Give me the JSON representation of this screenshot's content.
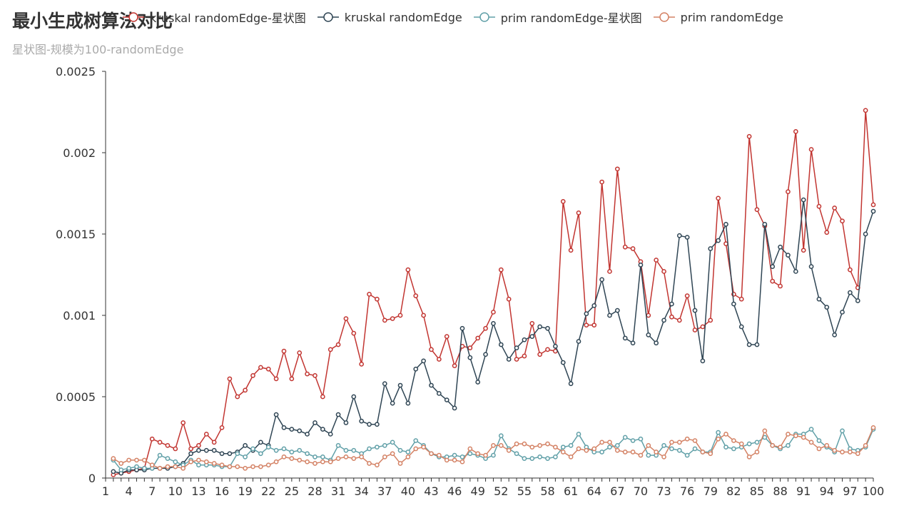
{
  "chart_data": {
    "type": "line",
    "title": "最小生成树算法对比",
    "subtitle": "星状图-规模为100-randomEdge",
    "xlabel": "",
    "ylabel": "",
    "ylim": [
      0,
      0.0025
    ],
    "yticks": [
      "0",
      "0.0005",
      "0.001",
      "0.0015",
      "0.002",
      "0.0025"
    ],
    "x_start": 1,
    "x_end": 100,
    "xticks": [
      1,
      4,
      7,
      10,
      13,
      16,
      19,
      22,
      25,
      28,
      31,
      34,
      37,
      40,
      43,
      46,
      49,
      52,
      55,
      58,
      61,
      64,
      67,
      70,
      73,
      76,
      79,
      82,
      85,
      88,
      91,
      94,
      97,
      100
    ],
    "legend_position": "top",
    "series": [
      {
        "name": "kruskal randomEdge-星状图",
        "color": "#c23531",
        "values": [
          null,
          2e-05,
          3e-05,
          4e-05,
          5e-05,
          6e-05,
          0.00024,
          0.00022,
          0.0002,
          0.00018,
          0.00034,
          0.00018,
          0.0002,
          0.00027,
          0.00022,
          0.00031,
          0.00061,
          0.0005,
          0.00054,
          0.00063,
          0.00068,
          0.00067,
          0.00061,
          0.00078,
          0.00061,
          0.00077,
          0.00064,
          0.00063,
          0.0005,
          0.00079,
          0.00082,
          0.00098,
          0.00089,
          0.0007,
          0.00113,
          0.0011,
          0.00097,
          0.00098,
          0.001,
          0.00128,
          0.00112,
          0.001,
          0.00079,
          0.00073,
          0.00087,
          0.00069,
          0.00081,
          0.0008,
          0.00086,
          0.00092,
          0.00102,
          0.00128,
          0.0011,
          0.00073,
          0.00075,
          0.00095,
          0.00076,
          0.00079,
          0.00078,
          0.0017,
          0.0014,
          0.00163,
          0.00094,
          0.00094,
          0.00182,
          0.00127,
          0.0019,
          0.00142,
          0.00141,
          0.00133,
          0.001,
          0.00134,
          0.00127,
          0.00099,
          0.00097,
          0.00112,
          0.00091,
          0.00093,
          0.00097,
          0.00172,
          0.00144,
          0.00113,
          0.0011,
          0.0021,
          0.00165,
          0.00155,
          0.00121,
          0.00118,
          0.00176,
          0.00213,
          0.0014,
          0.00202,
          0.00167,
          0.00151,
          0.00166,
          0.00158,
          0.00128,
          0.00117,
          0.00226,
          0.00168
        ]
      },
      {
        "name": "kruskal randomEdge",
        "color": "#2f4554",
        "values": [
          null,
          4e-05,
          3e-05,
          5e-05,
          5e-05,
          5e-05,
          6e-05,
          6e-05,
          6e-05,
          7e-05,
          9e-05,
          0.00015,
          0.00017,
          0.00017,
          0.00017,
          0.00015,
          0.00015,
          0.00016,
          0.0002,
          0.00017,
          0.00022,
          0.0002,
          0.00039,
          0.00031,
          0.0003,
          0.00029,
          0.00027,
          0.00034,
          0.0003,
          0.00027,
          0.00039,
          0.00034,
          0.0005,
          0.00035,
          0.00033,
          0.00033,
          0.00058,
          0.00046,
          0.00057,
          0.00046,
          0.00067,
          0.00072,
          0.00057,
          0.00052,
          0.00048,
          0.00043,
          0.00092,
          0.00074,
          0.00059,
          0.00076,
          0.00095,
          0.00082,
          0.00073,
          0.0008,
          0.00085,
          0.00087,
          0.00093,
          0.00092,
          0.00081,
          0.00071,
          0.00058,
          0.00084,
          0.00101,
          0.00106,
          0.00122,
          0.001,
          0.00103,
          0.00086,
          0.00083,
          0.00131,
          0.00088,
          0.00083,
          0.00097,
          0.00107,
          0.00149,
          0.00148,
          0.00103,
          0.00072,
          0.00141,
          0.00146,
          0.00156,
          0.00107,
          0.00093,
          0.00082,
          0.00082,
          0.00156,
          0.0013,
          0.00142,
          0.00137,
          0.00127,
          0.00171,
          0.0013,
          0.0011,
          0.00105,
          0.00088,
          0.00102,
          0.00114,
          0.00109,
          0.0015,
          0.00164
        ]
      },
      {
        "name": "prim randomEdge-星状图",
        "color": "#61a0a8",
        "values": [
          null,
          0.00011,
          5e-05,
          6e-05,
          7e-05,
          6e-05,
          6e-05,
          0.00014,
          0.00012,
          0.0001,
          8e-05,
          0.00011,
          8e-05,
          8e-05,
          8e-05,
          7e-05,
          7e-05,
          0.00015,
          0.00013,
          0.00018,
          0.00015,
          0.00019,
          0.00017,
          0.00018,
          0.00016,
          0.00017,
          0.00015,
          0.00013,
          0.00013,
          0.00011,
          0.0002,
          0.00017,
          0.00017,
          0.00015,
          0.00018,
          0.00019,
          0.0002,
          0.00022,
          0.00017,
          0.00016,
          0.00023,
          0.0002,
          0.00015,
          0.00013,
          0.00013,
          0.00014,
          0.00013,
          0.00015,
          0.00014,
          0.00012,
          0.00014,
          0.00026,
          0.00018,
          0.00015,
          0.00012,
          0.00012,
          0.00013,
          0.00012,
          0.00013,
          0.00019,
          0.0002,
          0.00027,
          0.00019,
          0.00016,
          0.00016,
          0.00019,
          0.0002,
          0.00025,
          0.00023,
          0.00024,
          0.00014,
          0.00014,
          0.0002,
          0.00018,
          0.00017,
          0.00014,
          0.00018,
          0.00016,
          0.00016,
          0.00028,
          0.00019,
          0.00018,
          0.00019,
          0.00021,
          0.00022,
          0.00025,
          0.0002,
          0.00018,
          0.0002,
          0.00027,
          0.00027,
          0.0003,
          0.00023,
          0.00019,
          0.00016,
          0.00029,
          0.00018,
          0.00017,
          0.00019,
          0.0003
        ]
      },
      {
        "name": "prim randomEdge",
        "color": "#d48265",
        "values": [
          null,
          0.00012,
          9e-05,
          0.00011,
          0.00011,
          0.00011,
          8e-05,
          6e-05,
          7e-05,
          7e-05,
          6e-05,
          0.0001,
          0.00011,
          0.0001,
          9e-05,
          8e-05,
          7e-05,
          7e-05,
          6e-05,
          7e-05,
          7e-05,
          8e-05,
          0.0001,
          0.00013,
          0.00012,
          0.00011,
          0.0001,
          9e-05,
          0.0001,
          0.0001,
          0.00012,
          0.00013,
          0.00012,
          0.00013,
          9e-05,
          8e-05,
          0.00013,
          0.00015,
          9e-05,
          0.00013,
          0.00018,
          0.00019,
          0.00015,
          0.00014,
          0.00011,
          0.00011,
          0.0001,
          0.00018,
          0.00015,
          0.00014,
          0.0002,
          0.0002,
          0.00017,
          0.00021,
          0.00021,
          0.00019,
          0.0002,
          0.00021,
          0.00019,
          0.00016,
          0.00013,
          0.00018,
          0.00017,
          0.00018,
          0.00022,
          0.00022,
          0.00017,
          0.00016,
          0.00016,
          0.00014,
          0.0002,
          0.00016,
          0.00013,
          0.00022,
          0.00022,
          0.00024,
          0.00023,
          0.00016,
          0.00015,
          0.00024,
          0.00027,
          0.00023,
          0.00021,
          0.00013,
          0.00016,
          0.00029,
          0.0002,
          0.00019,
          0.00027,
          0.00026,
          0.00025,
          0.00022,
          0.00018,
          0.0002,
          0.00017,
          0.00016,
          0.00016,
          0.00015,
          0.0002,
          0.00031
        ]
      }
    ]
  }
}
